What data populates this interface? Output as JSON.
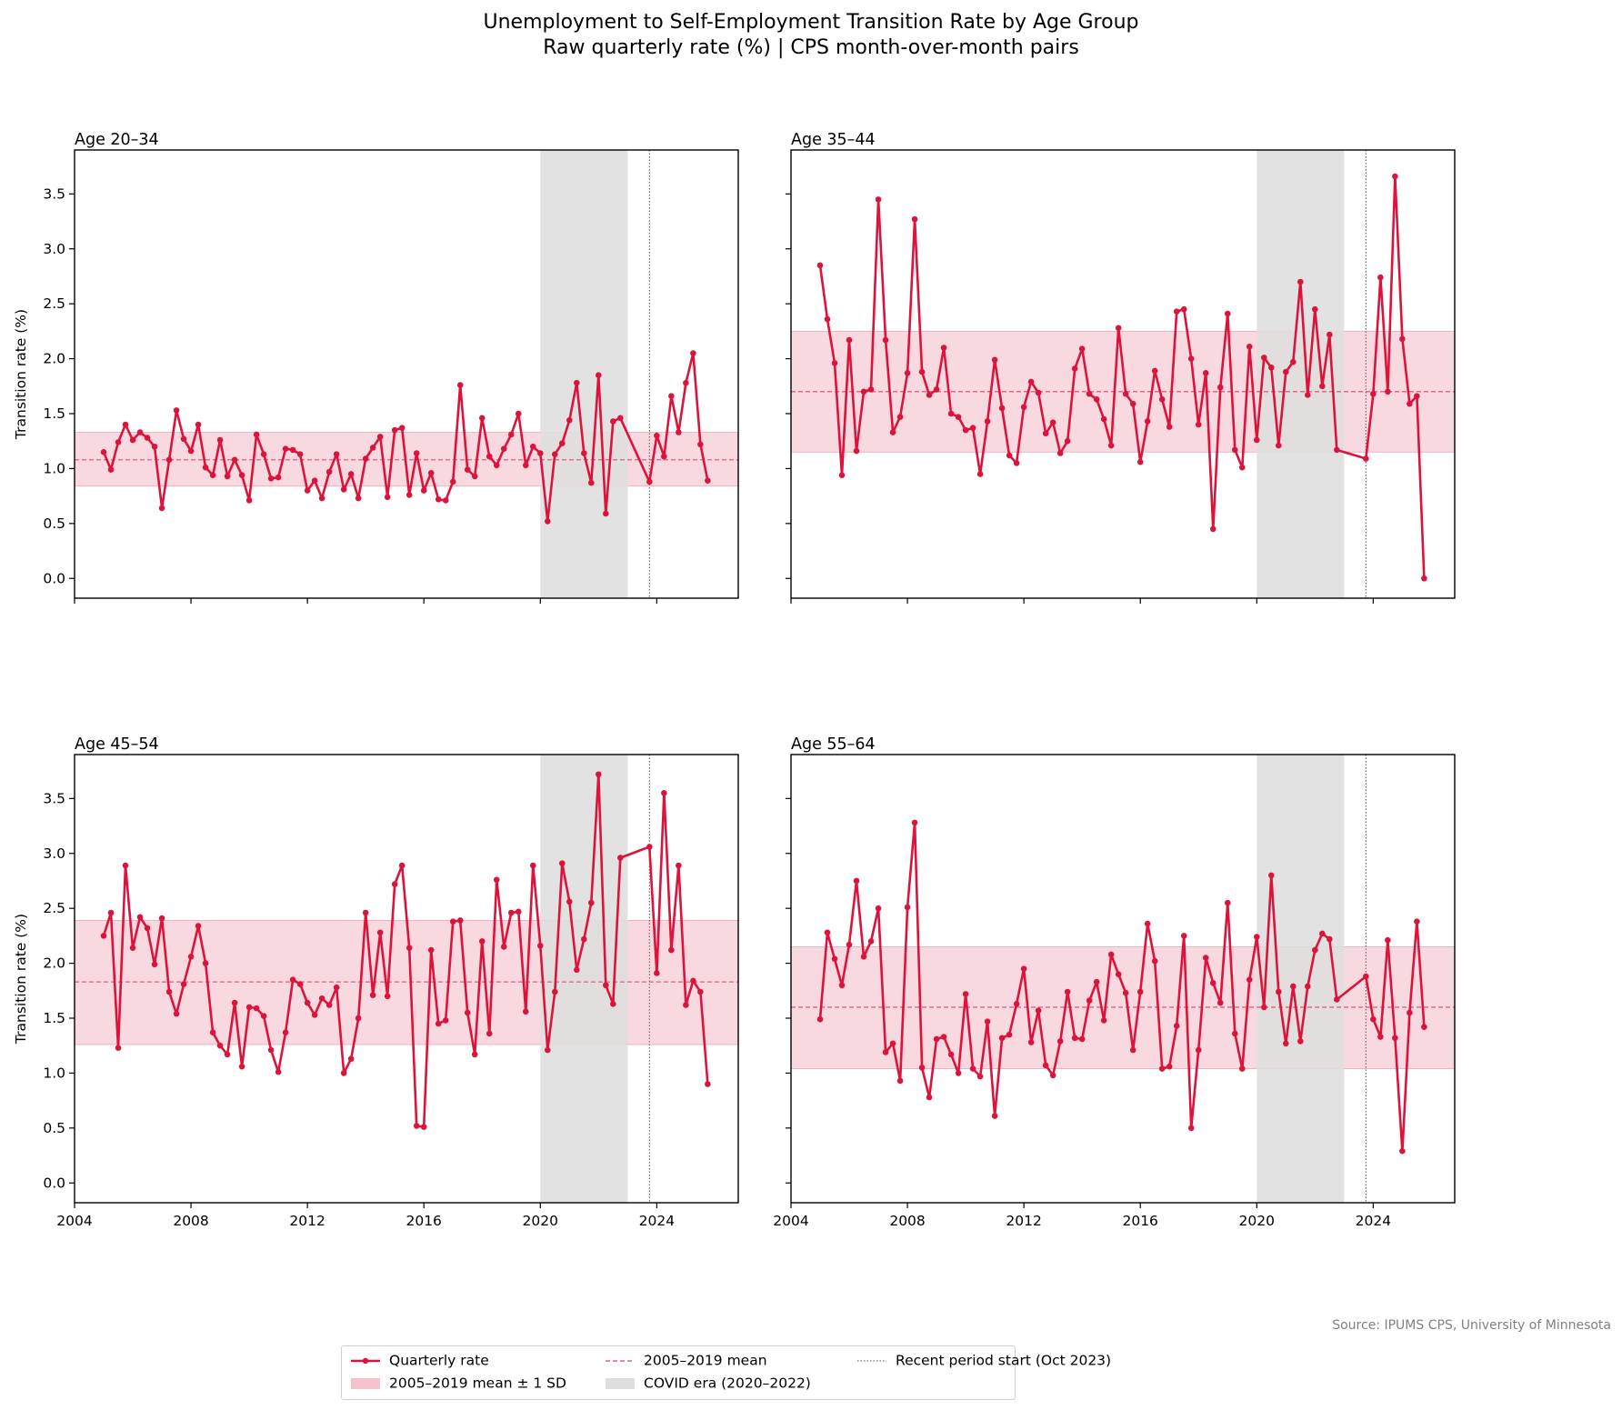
{
  "title": "Unemployment to Self-Employment Transition Rate by Age Group",
  "subtitle": "Raw quarterly rate (%)  |  CPS month-over-month pairs",
  "source": "Source: IPUMS CPS, University of Minnesota",
  "colors": {
    "series": "#dc143c",
    "band": "#f4c2cc",
    "covid": "#dedede",
    "marker_line": "#7a6a6a"
  },
  "legend": {
    "quarterly": "Quarterly rate",
    "band": "2005–2019 mean ± 1 SD",
    "mean": "2005–2019 mean",
    "covid": "COVID era (2020–2022)",
    "recent": "Recent period start (Oct 2023)"
  },
  "chart_data": [
    {
      "type": "line",
      "title": "Age 20–34",
      "xlabel": "",
      "ylabel": "Transition rate (%)",
      "xlim": [
        2004,
        2026.8
      ],
      "ylim": [
        -0.18,
        3.9
      ],
      "xticks": [
        2004,
        2008,
        2012,
        2016,
        2020,
        2024
      ],
      "yticks": [
        0.0,
        0.5,
        1.0,
        1.5,
        2.0,
        2.5,
        3.0,
        3.5
      ],
      "show_x_ticklabels": false,
      "show_y_ticklabels": true,
      "show_ylabel": true,
      "mean": 1.08,
      "band": [
        0.84,
        1.33
      ],
      "covid": [
        2020,
        2023
      ],
      "recent_start": 2023.75,
      "x": [
        2005.0,
        2005.25,
        2005.5,
        2005.75,
        2006.0,
        2006.25,
        2006.5,
        2006.75,
        2007.0,
        2007.25,
        2007.5,
        2007.75,
        2008.0,
        2008.25,
        2008.5,
        2008.75,
        2009.0,
        2009.25,
        2009.5,
        2009.75,
        2010.0,
        2010.25,
        2010.5,
        2010.75,
        2011.0,
        2011.25,
        2011.5,
        2011.75,
        2012.0,
        2012.25,
        2012.5,
        2012.75,
        2013.0,
        2013.25,
        2013.5,
        2013.75,
        2014.0,
        2014.25,
        2014.5,
        2014.75,
        2015.0,
        2015.25,
        2015.5,
        2015.75,
        2016.0,
        2016.25,
        2016.5,
        2016.75,
        2017.0,
        2017.25,
        2017.5,
        2017.75,
        2018.0,
        2018.25,
        2018.5,
        2018.75,
        2019.0,
        2019.25,
        2019.5,
        2019.75,
        2020.0,
        2020.25,
        2020.5,
        2020.75,
        2021.0,
        2021.25,
        2021.5,
        2021.75,
        2022.0,
        2022.25,
        2022.5,
        2022.75,
        2023.75,
        2024.0,
        2024.25,
        2024.5,
        2024.75,
        2025.0,
        2025.25,
        2025.5,
        2025.75
      ],
      "values": [
        1.15,
        0.99,
        1.24,
        1.4,
        1.26,
        1.33,
        1.28,
        1.2,
        0.64,
        1.08,
        1.53,
        1.27,
        1.16,
        1.4,
        1.01,
        0.94,
        1.26,
        0.93,
        1.08,
        0.94,
        0.71,
        1.31,
        1.13,
        0.91,
        0.92,
        1.18,
        1.17,
        1.13,
        0.8,
        0.89,
        0.73,
        0.97,
        1.13,
        0.81,
        0.95,
        0.73,
        1.09,
        1.19,
        1.29,
        0.74,
        1.35,
        1.37,
        0.76,
        1.14,
        0.8,
        0.96,
        0.72,
        0.71,
        0.88,
        1.76,
        0.99,
        0.93,
        1.46,
        1.11,
        1.03,
        1.18,
        1.31,
        1.5,
        1.03,
        1.2,
        1.14,
        0.52,
        1.13,
        1.23,
        1.44,
        1.78,
        1.14,
        0.87,
        1.85,
        0.59,
        1.43,
        1.46,
        0.88,
        1.3,
        1.11,
        1.66,
        1.33,
        1.78,
        2.05,
        1.22,
        0.89
      ]
    },
    {
      "type": "line",
      "title": "Age 35–44",
      "xlabel": "",
      "ylabel": "",
      "xlim": [
        2004,
        2026.8
      ],
      "ylim": [
        -0.18,
        3.9
      ],
      "xticks": [
        2004,
        2008,
        2012,
        2016,
        2020,
        2024
      ],
      "yticks": [
        0.0,
        0.5,
        1.0,
        1.5,
        2.0,
        2.5,
        3.0,
        3.5
      ],
      "show_x_ticklabels": false,
      "show_y_ticklabels": false,
      "show_ylabel": false,
      "mean": 1.7,
      "band": [
        1.15,
        2.25
      ],
      "covid": [
        2020,
        2023
      ],
      "recent_start": 2023.75,
      "x": [
        2005.0,
        2005.25,
        2005.5,
        2005.75,
        2006.0,
        2006.25,
        2006.5,
        2006.75,
        2007.0,
        2007.25,
        2007.5,
        2007.75,
        2008.0,
        2008.25,
        2008.5,
        2008.75,
        2009.0,
        2009.25,
        2009.5,
        2009.75,
        2010.0,
        2010.25,
        2010.5,
        2010.75,
        2011.0,
        2011.25,
        2011.5,
        2011.75,
        2012.0,
        2012.25,
        2012.5,
        2012.75,
        2013.0,
        2013.25,
        2013.5,
        2013.75,
        2014.0,
        2014.25,
        2014.5,
        2014.75,
        2015.0,
        2015.25,
        2015.5,
        2015.75,
        2016.0,
        2016.25,
        2016.5,
        2016.75,
        2017.0,
        2017.25,
        2017.5,
        2017.75,
        2018.0,
        2018.25,
        2018.5,
        2018.75,
        2019.0,
        2019.25,
        2019.5,
        2019.75,
        2020.0,
        2020.25,
        2020.5,
        2020.75,
        2021.0,
        2021.25,
        2021.5,
        2021.75,
        2022.0,
        2022.25,
        2022.5,
        2022.75,
        2023.75,
        2024.0,
        2024.25,
        2024.5,
        2024.75,
        2025.0,
        2025.25,
        2025.5,
        2025.75
      ],
      "values": [
        2.85,
        2.36,
        1.96,
        0.94,
        2.17,
        1.16,
        1.7,
        1.72,
        3.45,
        2.17,
        1.33,
        1.47,
        1.87,
        3.27,
        1.88,
        1.67,
        1.72,
        2.1,
        1.5,
        1.47,
        1.35,
        1.37,
        0.95,
        1.43,
        1.99,
        1.55,
        1.12,
        1.05,
        1.56,
        1.79,
        1.69,
        1.32,
        1.42,
        1.14,
        1.25,
        1.91,
        2.09,
        1.68,
        1.63,
        1.45,
        1.21,
        2.28,
        1.68,
        1.59,
        1.06,
        1.43,
        1.89,
        1.63,
        1.38,
        2.43,
        2.45,
        2.0,
        1.4,
        1.87,
        0.45,
        1.74,
        2.41,
        1.17,
        1.01,
        2.11,
        1.26,
        2.01,
        1.92,
        1.21,
        1.88,
        1.97,
        2.7,
        1.67,
        2.45,
        1.75,
        2.22,
        1.17,
        1.09,
        1.68,
        2.74,
        1.7,
        3.66,
        2.18,
        1.59,
        1.66,
        0.0
      ]
    },
    {
      "type": "line",
      "title": "Age 45–54",
      "xlabel": "",
      "ylabel": "Transition rate (%)",
      "xlim": [
        2004,
        2026.8
      ],
      "ylim": [
        -0.18,
        3.9
      ],
      "xticks": [
        2004,
        2008,
        2012,
        2016,
        2020,
        2024
      ],
      "yticks": [
        0.0,
        0.5,
        1.0,
        1.5,
        2.0,
        2.5,
        3.0,
        3.5
      ],
      "show_x_ticklabels": true,
      "show_y_ticklabels": true,
      "show_ylabel": true,
      "mean": 1.83,
      "band": [
        1.26,
        2.39
      ],
      "covid": [
        2020,
        2023
      ],
      "recent_start": 2023.75,
      "x": [
        2005.0,
        2005.25,
        2005.5,
        2005.75,
        2006.0,
        2006.25,
        2006.5,
        2006.75,
        2007.0,
        2007.25,
        2007.5,
        2007.75,
        2008.0,
        2008.25,
        2008.5,
        2008.75,
        2009.0,
        2009.25,
        2009.5,
        2009.75,
        2010.0,
        2010.25,
        2010.5,
        2010.75,
        2011.0,
        2011.25,
        2011.5,
        2011.75,
        2012.0,
        2012.25,
        2012.5,
        2012.75,
        2013.0,
        2013.25,
        2013.5,
        2013.75,
        2014.0,
        2014.25,
        2014.5,
        2014.75,
        2015.0,
        2015.25,
        2015.5,
        2015.75,
        2016.0,
        2016.25,
        2016.5,
        2016.75,
        2017.0,
        2017.25,
        2017.5,
        2017.75,
        2018.0,
        2018.25,
        2018.5,
        2018.75,
        2019.0,
        2019.25,
        2019.5,
        2019.75,
        2020.0,
        2020.25,
        2020.5,
        2020.75,
        2021.0,
        2021.25,
        2021.5,
        2021.75,
        2022.0,
        2022.25,
        2022.5,
        2022.75,
        2023.75,
        2024.0,
        2024.25,
        2024.5,
        2024.75,
        2025.0,
        2025.25,
        2025.5,
        2025.75
      ],
      "values": [
        2.25,
        2.46,
        1.23,
        2.89,
        2.14,
        2.42,
        2.32,
        1.99,
        2.41,
        1.74,
        1.54,
        1.81,
        2.06,
        2.34,
        2.0,
        1.37,
        1.25,
        1.17,
        1.64,
        1.06,
        1.6,
        1.59,
        1.52,
        1.21,
        1.01,
        1.37,
        1.85,
        1.81,
        1.64,
        1.53,
        1.68,
        1.62,
        1.78,
        1.0,
        1.13,
        1.5,
        2.46,
        1.71,
        2.28,
        1.7,
        2.72,
        2.89,
        2.14,
        0.52,
        0.51,
        2.12,
        1.45,
        1.48,
        2.38,
        2.39,
        1.55,
        1.17,
        2.2,
        1.36,
        2.76,
        2.15,
        2.46,
        2.47,
        1.56,
        2.89,
        2.16,
        1.21,
        1.74,
        2.91,
        2.56,
        1.94,
        2.22,
        2.55,
        3.72,
        1.8,
        1.63,
        2.96,
        3.06,
        1.91,
        3.55,
        2.12,
        2.89,
        1.62,
        1.84,
        1.74,
        0.9
      ]
    },
    {
      "type": "line",
      "title": "Age 55–64",
      "xlabel": "",
      "ylabel": "",
      "xlim": [
        2004,
        2026.8
      ],
      "ylim": [
        -0.18,
        3.9
      ],
      "xticks": [
        2004,
        2008,
        2012,
        2016,
        2020,
        2024
      ],
      "yticks": [
        0.0,
        0.5,
        1.0,
        1.5,
        2.0,
        2.5,
        3.0,
        3.5
      ],
      "show_x_ticklabels": true,
      "show_y_ticklabels": false,
      "show_ylabel": false,
      "mean": 1.6,
      "band": [
        1.04,
        2.15
      ],
      "covid": [
        2020,
        2023
      ],
      "recent_start": 2023.75,
      "x": [
        2005.0,
        2005.25,
        2005.5,
        2005.75,
        2006.0,
        2006.25,
        2006.5,
        2006.75,
        2007.0,
        2007.25,
        2007.5,
        2007.75,
        2008.0,
        2008.25,
        2008.5,
        2008.75,
        2009.0,
        2009.25,
        2009.5,
        2009.75,
        2010.0,
        2010.25,
        2010.5,
        2010.75,
        2011.0,
        2011.25,
        2011.5,
        2011.75,
        2012.0,
        2012.25,
        2012.5,
        2012.75,
        2013.0,
        2013.25,
        2013.5,
        2013.75,
        2014.0,
        2014.25,
        2014.5,
        2014.75,
        2015.0,
        2015.25,
        2015.5,
        2015.75,
        2016.0,
        2016.25,
        2016.5,
        2016.75,
        2017.0,
        2017.25,
        2017.5,
        2017.75,
        2018.0,
        2018.25,
        2018.5,
        2018.75,
        2019.0,
        2019.25,
        2019.5,
        2019.75,
        2020.0,
        2020.25,
        2020.5,
        2020.75,
        2021.0,
        2021.25,
        2021.5,
        2021.75,
        2022.0,
        2022.25,
        2022.5,
        2022.75,
        2023.75,
        2024.0,
        2024.25,
        2024.5,
        2024.75,
        2025.0,
        2025.25,
        2025.5,
        2025.75
      ],
      "values": [
        1.49,
        2.28,
        2.04,
        1.8,
        2.17,
        2.75,
        2.06,
        2.2,
        2.5,
        1.19,
        1.27,
        0.93,
        2.51,
        3.28,
        1.05,
        0.78,
        1.31,
        1.33,
        1.17,
        1.0,
        1.72,
        1.04,
        0.97,
        1.47,
        0.61,
        1.32,
        1.35,
        1.63,
        1.95,
        1.28,
        1.57,
        1.07,
        0.98,
        1.29,
        1.74,
        1.32,
        1.31,
        1.66,
        1.83,
        1.48,
        2.08,
        1.9,
        1.73,
        1.21,
        1.74,
        2.36,
        2.02,
        1.04,
        1.06,
        1.43,
        2.25,
        0.5,
        1.21,
        2.05,
        1.82,
        1.64,
        2.55,
        1.36,
        1.04,
        1.85,
        2.24,
        1.6,
        2.8,
        1.74,
        1.27,
        1.79,
        1.29,
        1.79,
        2.12,
        2.27,
        2.22,
        1.67,
        1.88,
        1.49,
        1.33,
        2.21,
        1.32,
        0.29,
        1.55,
        2.38,
        1.42
      ]
    }
  ]
}
